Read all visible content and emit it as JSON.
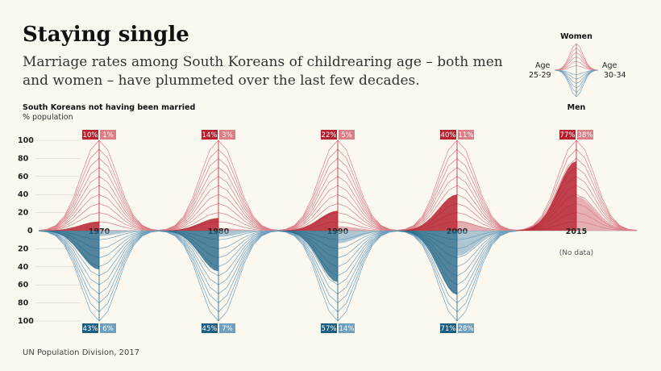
{
  "header": {
    "title": "Staying single",
    "subtitle": "Marriage rates among South Koreans of childrearing age – both men and women – have plummeted over the last few decades."
  },
  "axis": {
    "label": "South Koreans not having been married",
    "unit": "% population"
  },
  "legend": {
    "top": "Women",
    "bottom": "Men",
    "left_title": "Age",
    "left_range": "25-29",
    "right_title": "Age",
    "right_range": "30-34"
  },
  "source": "UN Population Division, 2017",
  "colors": {
    "women_dark": "#b5202e",
    "women_light": "#d97f88",
    "men_dark": "#1a5f82",
    "men_light": "#6f9fbc"
  },
  "chart_data": {
    "type": "area",
    "title": "Staying single",
    "ylabel": "% population",
    "ylim": [
      0,
      100
    ],
    "yticks": [
      20,
      40,
      60,
      80,
      100
    ],
    "zero_label": "0",
    "series_names": [
      "Women 25-29",
      "Women 30-34",
      "Men 25-29",
      "Men 30-34"
    ],
    "years": [
      "1970",
      "1980",
      "1990",
      "2000",
      "2015"
    ],
    "data": [
      {
        "year": "1970",
        "women_25_29": 10,
        "women_30_34": 1,
        "men_25_29": 43,
        "men_30_34": 6,
        "labels": {
          "w1": "10%",
          "w2": "1%",
          "m1": "43%",
          "m2": "6%"
        }
      },
      {
        "year": "1980",
        "women_25_29": 14,
        "women_30_34": 3,
        "men_25_29": 45,
        "men_30_34": 7,
        "labels": {
          "w1": "14%",
          "w2": "3%",
          "m1": "45%",
          "m2": "7%"
        }
      },
      {
        "year": "1990",
        "women_25_29": 22,
        "women_30_34": 5,
        "men_25_29": 57,
        "men_30_34": 14,
        "labels": {
          "w1": "22%",
          "w2": "5%",
          "m1": "57%",
          "m2": "14%"
        }
      },
      {
        "year": "2000",
        "women_25_29": 40,
        "women_30_34": 11,
        "men_25_29": 71,
        "men_30_34": 28,
        "labels": {
          "w1": "40%",
          "w2": "11%",
          "m1": "71%",
          "m2": "28%"
        }
      },
      {
        "year": "2015",
        "women_25_29": 77,
        "women_30_34": 38,
        "men_25_29": null,
        "men_30_34": null,
        "labels": {
          "w1": "77%",
          "w2": "38%"
        },
        "no_data_label": "(No data)"
      }
    ]
  }
}
